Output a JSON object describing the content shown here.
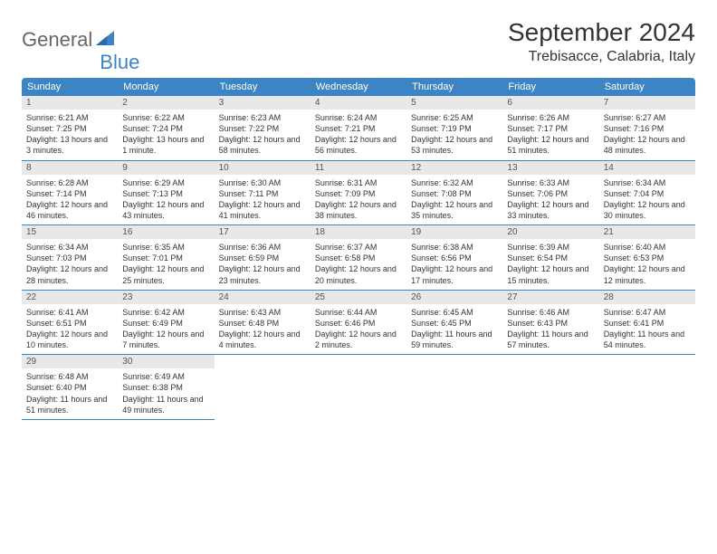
{
  "logo": {
    "text_general": "General",
    "text_blue": "Blue",
    "triangle_color": "#3d84c4"
  },
  "title": "September 2024",
  "location": "Trebisacce, Calabria, Italy",
  "colors": {
    "header_bg": "#3d84c4",
    "header_text": "#ffffff",
    "day_num_bg": "#e8e8e8",
    "border": "#3d84c4"
  },
  "weekdays": [
    "Sunday",
    "Monday",
    "Tuesday",
    "Wednesday",
    "Thursday",
    "Friday",
    "Saturday"
  ],
  "days": [
    {
      "n": "1",
      "sunrise": "6:21 AM",
      "sunset": "7:25 PM",
      "daylight": "13 hours and 3 minutes."
    },
    {
      "n": "2",
      "sunrise": "6:22 AM",
      "sunset": "7:24 PM",
      "daylight": "13 hours and 1 minute."
    },
    {
      "n": "3",
      "sunrise": "6:23 AM",
      "sunset": "7:22 PM",
      "daylight": "12 hours and 58 minutes."
    },
    {
      "n": "4",
      "sunrise": "6:24 AM",
      "sunset": "7:21 PM",
      "daylight": "12 hours and 56 minutes."
    },
    {
      "n": "5",
      "sunrise": "6:25 AM",
      "sunset": "7:19 PM",
      "daylight": "12 hours and 53 minutes."
    },
    {
      "n": "6",
      "sunrise": "6:26 AM",
      "sunset": "7:17 PM",
      "daylight": "12 hours and 51 minutes."
    },
    {
      "n": "7",
      "sunrise": "6:27 AM",
      "sunset": "7:16 PM",
      "daylight": "12 hours and 48 minutes."
    },
    {
      "n": "8",
      "sunrise": "6:28 AM",
      "sunset": "7:14 PM",
      "daylight": "12 hours and 46 minutes."
    },
    {
      "n": "9",
      "sunrise": "6:29 AM",
      "sunset": "7:13 PM",
      "daylight": "12 hours and 43 minutes."
    },
    {
      "n": "10",
      "sunrise": "6:30 AM",
      "sunset": "7:11 PM",
      "daylight": "12 hours and 41 minutes."
    },
    {
      "n": "11",
      "sunrise": "6:31 AM",
      "sunset": "7:09 PM",
      "daylight": "12 hours and 38 minutes."
    },
    {
      "n": "12",
      "sunrise": "6:32 AM",
      "sunset": "7:08 PM",
      "daylight": "12 hours and 35 minutes."
    },
    {
      "n": "13",
      "sunrise": "6:33 AM",
      "sunset": "7:06 PM",
      "daylight": "12 hours and 33 minutes."
    },
    {
      "n": "14",
      "sunrise": "6:34 AM",
      "sunset": "7:04 PM",
      "daylight": "12 hours and 30 minutes."
    },
    {
      "n": "15",
      "sunrise": "6:34 AM",
      "sunset": "7:03 PM",
      "daylight": "12 hours and 28 minutes."
    },
    {
      "n": "16",
      "sunrise": "6:35 AM",
      "sunset": "7:01 PM",
      "daylight": "12 hours and 25 minutes."
    },
    {
      "n": "17",
      "sunrise": "6:36 AM",
      "sunset": "6:59 PM",
      "daylight": "12 hours and 23 minutes."
    },
    {
      "n": "18",
      "sunrise": "6:37 AM",
      "sunset": "6:58 PM",
      "daylight": "12 hours and 20 minutes."
    },
    {
      "n": "19",
      "sunrise": "6:38 AM",
      "sunset": "6:56 PM",
      "daylight": "12 hours and 17 minutes."
    },
    {
      "n": "20",
      "sunrise": "6:39 AM",
      "sunset": "6:54 PM",
      "daylight": "12 hours and 15 minutes."
    },
    {
      "n": "21",
      "sunrise": "6:40 AM",
      "sunset": "6:53 PM",
      "daylight": "12 hours and 12 minutes."
    },
    {
      "n": "22",
      "sunrise": "6:41 AM",
      "sunset": "6:51 PM",
      "daylight": "12 hours and 10 minutes."
    },
    {
      "n": "23",
      "sunrise": "6:42 AM",
      "sunset": "6:49 PM",
      "daylight": "12 hours and 7 minutes."
    },
    {
      "n": "24",
      "sunrise": "6:43 AM",
      "sunset": "6:48 PM",
      "daylight": "12 hours and 4 minutes."
    },
    {
      "n": "25",
      "sunrise": "6:44 AM",
      "sunset": "6:46 PM",
      "daylight": "12 hours and 2 minutes."
    },
    {
      "n": "26",
      "sunrise": "6:45 AM",
      "sunset": "6:45 PM",
      "daylight": "11 hours and 59 minutes."
    },
    {
      "n": "27",
      "sunrise": "6:46 AM",
      "sunset": "6:43 PM",
      "daylight": "11 hours and 57 minutes."
    },
    {
      "n": "28",
      "sunrise": "6:47 AM",
      "sunset": "6:41 PM",
      "daylight": "11 hours and 54 minutes."
    },
    {
      "n": "29",
      "sunrise": "6:48 AM",
      "sunset": "6:40 PM",
      "daylight": "11 hours and 51 minutes."
    },
    {
      "n": "30",
      "sunrise": "6:49 AM",
      "sunset": "6:38 PM",
      "daylight": "11 hours and 49 minutes."
    }
  ],
  "labels": {
    "sunrise": "Sunrise:",
    "sunset": "Sunset:",
    "daylight": "Daylight:"
  },
  "layout": {
    "first_day_column": 0,
    "total_columns": 7,
    "total_rows": 5
  }
}
